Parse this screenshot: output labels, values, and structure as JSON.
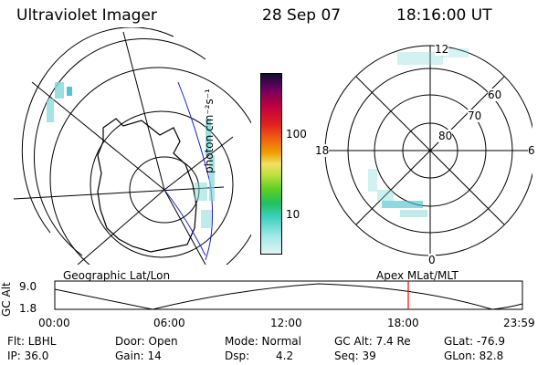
{
  "header": {
    "instrument": "Ultraviolet Imager",
    "date": "28 Sep 07",
    "time": "18:16:00 UT"
  },
  "colorbar": {
    "unit_label": "photon cm⁻²s⁻¹",
    "ticks": [
      "100",
      "10"
    ]
  },
  "polar_plot": {
    "lat_labels": [
      "60",
      "70",
      "80"
    ],
    "mlt_labels": [
      "12",
      "18",
      "6",
      "0"
    ]
  },
  "projection_labels": {
    "left": "Geographic Lat/Lon",
    "right": "Apex MLat/MLT"
  },
  "altitude_plot": {
    "axis_label": "GC Alt",
    "y_ticks": [
      "9.0",
      "1.8"
    ],
    "x_ticks": [
      "00:00",
      "06:00",
      "12:00",
      "18:00",
      "23:59"
    ],
    "marker_color": "#ff0000"
  },
  "info": {
    "flt": "Flt: LBHL",
    "ip": "IP: 36.0",
    "door": "Door: Open",
    "gain": "Gain: 14",
    "mode": "Mode: Normal",
    "dsp_label": "Dsp:",
    "dsp_value": "4.2",
    "gcalt": "GC Alt: 7.4 Re",
    "seq": "Seq: 39",
    "glat": "GLat: -76.9",
    "glon": "GLon: 82.8"
  },
  "colors": {
    "aurora": "#7fd8d8",
    "aurora_dark": "#40c0c8",
    "grid": "#000000",
    "blue_line": "#2020c0"
  }
}
